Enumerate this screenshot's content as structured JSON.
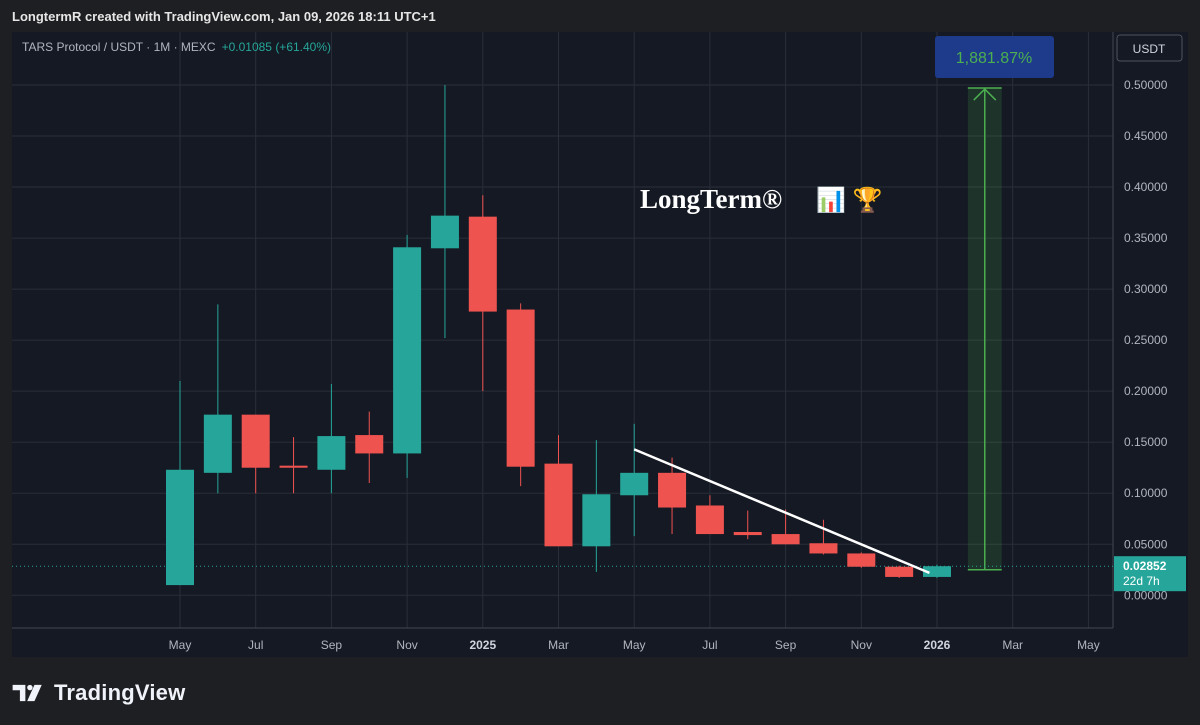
{
  "header": {
    "attribution": "LongtermR created with TradingView.com, Jan 09, 2026 18:11 UTC+1"
  },
  "legend": {
    "symbol": "TARS Protocol / USDT · 1M · MEXC",
    "change": "+0.01085 (+61.40%)"
  },
  "watermark": {
    "text": "LongTerm®",
    "emoji": "📊 🏆"
  },
  "currency_label": "USDT",
  "measure_label": "1,881.87%",
  "last_price": {
    "price": "0.02852",
    "countdown": "22d 7h"
  },
  "footer": {
    "brand": "TradingView"
  },
  "colors": {
    "up": "#26a69a",
    "down": "#ef5350",
    "background": "#141923",
    "measure": "#4caf50",
    "measure_label_bg": "#1e3a8a"
  },
  "chart_data": {
    "type": "candlestick",
    "interval": "1M",
    "ylim": [
      -0.03,
      0.52
    ],
    "y_ticks": [
      "0.00000",
      "0.05000",
      "0.10000",
      "0.15000",
      "0.20000",
      "0.25000",
      "0.30000",
      "0.35000",
      "0.40000",
      "0.45000",
      "0.50000"
    ],
    "x_ticks": [
      {
        "month": 0,
        "label": "May"
      },
      {
        "month": 2,
        "label": "Jul"
      },
      {
        "month": 4,
        "label": "Sep"
      },
      {
        "month": 6,
        "label": "Nov"
      },
      {
        "month": 8,
        "label": "2025",
        "bold": true
      },
      {
        "month": 10,
        "label": "Mar"
      },
      {
        "month": 12,
        "label": "May"
      },
      {
        "month": 14,
        "label": "Jul"
      },
      {
        "month": 16,
        "label": "Sep"
      },
      {
        "month": 18,
        "label": "Nov"
      },
      {
        "month": 20,
        "label": "2026",
        "bold": true
      },
      {
        "month": 22,
        "label": "Mar"
      },
      {
        "month": 24,
        "label": "May"
      }
    ],
    "candles": [
      {
        "month": 0,
        "o": 0.01,
        "h": 0.21,
        "l": 0.01,
        "c": 0.123
      },
      {
        "month": 1,
        "o": 0.12,
        "h": 0.285,
        "l": 0.1,
        "c": 0.177
      },
      {
        "month": 2,
        "o": 0.177,
        "h": 0.177,
        "l": 0.1,
        "c": 0.125
      },
      {
        "month": 3,
        "o": 0.127,
        "h": 0.155,
        "l": 0.1,
        "c": 0.125
      },
      {
        "month": 4,
        "o": 0.123,
        "h": 0.207,
        "l": 0.1,
        "c": 0.156
      },
      {
        "month": 5,
        "o": 0.157,
        "h": 0.18,
        "l": 0.11,
        "c": 0.139
      },
      {
        "month": 6,
        "o": 0.139,
        "h": 0.353,
        "l": 0.115,
        "c": 0.341
      },
      {
        "month": 7,
        "o": 0.34,
        "h": 0.5,
        "l": 0.252,
        "c": 0.372
      },
      {
        "month": 8,
        "o": 0.371,
        "h": 0.392,
        "l": 0.2,
        "c": 0.278
      },
      {
        "month": 9,
        "o": 0.28,
        "h": 0.286,
        "l": 0.107,
        "c": 0.126
      },
      {
        "month": 10,
        "o": 0.129,
        "h": 0.157,
        "l": 0.048,
        "c": 0.048
      },
      {
        "month": 11,
        "o": 0.048,
        "h": 0.152,
        "l": 0.023,
        "c": 0.099
      },
      {
        "month": 12,
        "o": 0.098,
        "h": 0.168,
        "l": 0.058,
        "c": 0.12
      },
      {
        "month": 13,
        "o": 0.12,
        "h": 0.135,
        "l": 0.06,
        "c": 0.086
      },
      {
        "month": 14,
        "o": 0.088,
        "h": 0.098,
        "l": 0.06,
        "c": 0.06
      },
      {
        "month": 15,
        "o": 0.062,
        "h": 0.083,
        "l": 0.055,
        "c": 0.059
      },
      {
        "month": 16,
        "o": 0.06,
        "h": 0.084,
        "l": 0.05,
        "c": 0.05
      },
      {
        "month": 17,
        "o": 0.051,
        "h": 0.074,
        "l": 0.04,
        "c": 0.041
      },
      {
        "month": 18,
        "o": 0.041,
        "h": 0.042,
        "l": 0.027,
        "c": 0.028
      },
      {
        "month": 19,
        "o": 0.028,
        "h": 0.029,
        "l": 0.017,
        "c": 0.018
      },
      {
        "month": 20,
        "o": 0.018,
        "h": 0.03,
        "l": 0.017,
        "c": 0.0285
      }
    ],
    "trendline": {
      "from": {
        "month": 12,
        "price": 0.143
      },
      "to": {
        "month": 19.8,
        "price": 0.022
      }
    },
    "measure": {
      "month": 21.5,
      "from_price": 0.025,
      "to_price": 0.497,
      "from_month": 21,
      "to_month": 22,
      "percent": "1,881.87%"
    },
    "last_price_line": 0.02852
  }
}
